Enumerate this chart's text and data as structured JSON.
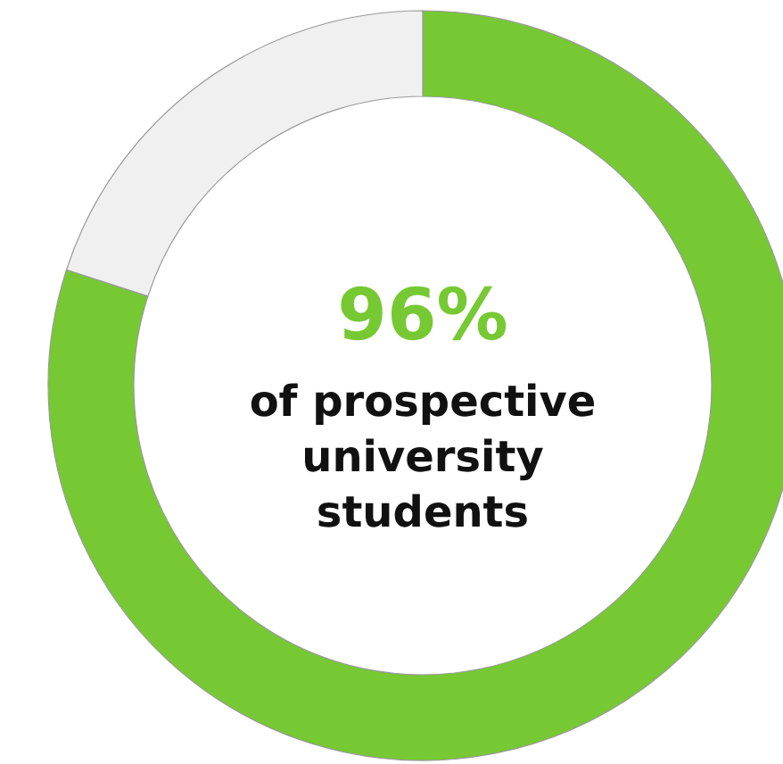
{
  "chart_data": {
    "type": "donut",
    "categories": [
      null,
      null
    ],
    "values": [
      80,
      20
    ],
    "colors": [
      "#76c932",
      "#f0f0f0"
    ],
    "annotations": [
      "96%",
      "of prospective university students"
    ]
  }
}
